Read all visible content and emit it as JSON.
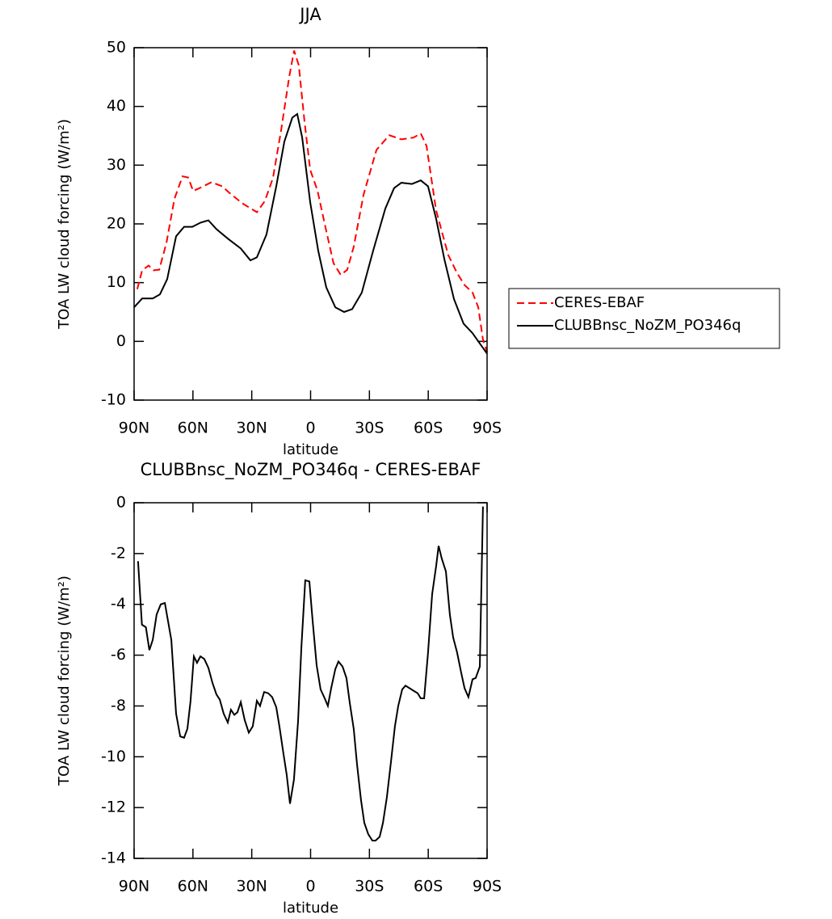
{
  "chart_data": [
    {
      "type": "line",
      "title": "JJA",
      "xlabel": "latitude",
      "ylabel": "TOA LW cloud forcing (W/m²)",
      "xlim": [
        90,
        -90
      ],
      "ylim": [
        -10,
        50
      ],
      "xticks": [
        {
          "value": 90,
          "label": "90N"
        },
        {
          "value": 60,
          "label": "60N"
        },
        {
          "value": 30,
          "label": "30N"
        },
        0,
        {
          "value": -30,
          "label": "30S"
        },
        {
          "value": -60,
          "label": "60S"
        },
        {
          "value": -90,
          "label": "90S"
        }
      ],
      "yticks": [
        -10,
        0,
        10,
        20,
        30,
        40,
        50
      ],
      "legend": "right",
      "series": [
        {
          "name": "CERES-EBAF",
          "color": "#ff0000",
          "dashed": true,
          "x": [
            88.4,
            85.9,
            82.6,
            80.1,
            77.2,
            73.5,
            69.4,
            65.3,
            62.4,
            59.9,
            56.6,
            50.5,
            45.1,
            41.8,
            34.8,
            27.4,
            23.3,
            19.2,
            15.0,
            10.9,
            8.4,
            6.0,
            3.1,
            0.2,
            -3.5,
            -8.0,
            -11.7,
            -15.4,
            -18.7,
            -22.0,
            -27.0,
            -33.6,
            -40.1,
            -46.3,
            -52.5,
            -56.2,
            -59.1,
            -64.0,
            -70.2,
            -74.7,
            -78.5,
            -82.6,
            -85.5,
            -87.9,
            -90.0
          ],
          "values": [
            8.9,
            12.1,
            12.9,
            12.1,
            12.2,
            16.8,
            24.3,
            28.1,
            27.9,
            25.6,
            26.1,
            27.1,
            26.4,
            25.4,
            23.5,
            22.0,
            23.9,
            27.8,
            36.0,
            45.0,
            49.5,
            47.0,
            37.4,
            29.2,
            25.7,
            18.8,
            13.3,
            11.3,
            12.2,
            16.1,
            25.0,
            32.6,
            35.1,
            34.4,
            34.7,
            35.4,
            33.3,
            22.3,
            14.7,
            11.6,
            9.6,
            8.3,
            5.8,
            0.3,
            -1.8
          ]
        },
        {
          "name": "CLUBBnsc_NoZM_PO346q",
          "color": "#000000",
          "dashed": false,
          "x": [
            90.0,
            85.9,
            80.5,
            76.8,
            73.1,
            68.6,
            64.5,
            60.3,
            56.2,
            52.1,
            48.0,
            42.2,
            35.6,
            30.7,
            27.4,
            22.5,
            17.5,
            13.4,
            9.3,
            6.8,
            4.3,
            0.2,
            -3.9,
            -8.0,
            -12.6,
            -17.1,
            -21.2,
            -26.1,
            -31.9,
            -38.1,
            -42.6,
            -46.3,
            -51.7,
            -56.2,
            -59.9,
            -64.0,
            -68.2,
            -73.1,
            -78.0,
            -82.6,
            -85.5,
            -90.0
          ],
          "values": [
            5.8,
            7.3,
            7.3,
            8.0,
            10.6,
            17.9,
            19.5,
            19.5,
            20.2,
            20.6,
            19.1,
            17.5,
            15.8,
            13.8,
            14.3,
            18.2,
            26.4,
            34.0,
            38.1,
            38.7,
            34.7,
            23.7,
            15.4,
            9.2,
            5.8,
            5.0,
            5.5,
            8.3,
            15.4,
            22.6,
            26.1,
            27.0,
            26.8,
            27.4,
            26.4,
            20.9,
            14.0,
            7.2,
            3.0,
            1.4,
            0.0,
            -2.1
          ]
        }
      ]
    },
    {
      "type": "line",
      "title": "CLUBBnsc_NoZM_PO346q - CERES-EBAF",
      "xlabel": "latitude",
      "ylabel": "TOA LW cloud forcing (W/m²)",
      "xlim": [
        90,
        -90
      ],
      "ylim": [
        -14,
        0
      ],
      "xticks": [
        {
          "value": 90,
          "label": "90N"
        },
        {
          "value": 60,
          "label": "60N"
        },
        {
          "value": 30,
          "label": "30N"
        },
        0,
        {
          "value": -30,
          "label": "30S"
        },
        {
          "value": -60,
          "label": "60S"
        },
        {
          "value": -90,
          "label": "90S"
        }
      ],
      "yticks": [
        -14,
        -12,
        -10,
        -8,
        -6,
        -4,
        -2,
        0
      ],
      "series": [
        {
          "color": "#000000",
          "dashed": false,
          "x": [
            88,
            86,
            84,
            82.2,
            80.5,
            78.5,
            76.4,
            74.3,
            71,
            68.6,
            66.5,
            64.5,
            62.8,
            61.2,
            59.5,
            57.9,
            56.2,
            54.2,
            52.1,
            50.0,
            48.0,
            46.3,
            44.3,
            42.2,
            40.6,
            38.9,
            37.3,
            35.6,
            33.6,
            31.5,
            29.5,
            27.4,
            25.8,
            23.7,
            21.6,
            19.6,
            17.5,
            15.9,
            13.8,
            12.2,
            10.5,
            8.5,
            6.4,
            4.7,
            2.7,
            0.6,
            -1.0,
            -3.1,
            -5.1,
            -7.2,
            -8.8,
            -10.5,
            -12.6,
            -14.2,
            -16.3,
            -18.3,
            -20.0,
            -22.0,
            -23.7,
            -25.7,
            -27.4,
            -29.4,
            -31.5,
            -33.1,
            -35.2,
            -36.9,
            -38.9,
            -41.0,
            -43.0,
            -44.7,
            -46.7,
            -48.4,
            -50.4,
            -52.5,
            -54.6,
            -56.2,
            -57.9,
            -59.9,
            -62.0,
            -64.0,
            -65.3,
            -66.9,
            -69.0,
            -71.0,
            -72.7,
            -74.7,
            -76.8,
            -78.5,
            -80.5,
            -82.6,
            -84.2,
            -86.3,
            -87.9
          ],
          "values": [
            -2.3,
            -4.8,
            -4.9,
            -5.8,
            -5.4,
            -4.4,
            -4.0,
            -3.95,
            -5.4,
            -8.3,
            -9.2,
            -9.25,
            -8.9,
            -7.8,
            -6.05,
            -6.3,
            -6.05,
            -6.15,
            -6.5,
            -7.1,
            -7.55,
            -7.75,
            -8.3,
            -8.65,
            -8.15,
            -8.35,
            -8.25,
            -7.85,
            -8.55,
            -9.05,
            -8.8,
            -7.8,
            -8.0,
            -7.45,
            -7.5,
            -7.65,
            -8.05,
            -8.8,
            -9.9,
            -10.7,
            -11.85,
            -10.9,
            -8.6,
            -5.7,
            -3.05,
            -3.1,
            -4.6,
            -6.4,
            -7.35,
            -7.7,
            -8.0,
            -7.3,
            -6.55,
            -6.25,
            -6.45,
            -6.9,
            -7.9,
            -8.9,
            -10.3,
            -11.7,
            -12.6,
            -13.05,
            -13.3,
            -13.3,
            -13.15,
            -12.6,
            -11.6,
            -10.2,
            -8.8,
            -8.0,
            -7.35,
            -7.2,
            -7.3,
            -7.4,
            -7.5,
            -7.7,
            -7.7,
            -5.9,
            -3.6,
            -2.5,
            -1.7,
            -2.2,
            -2.7,
            -4.4,
            -5.3,
            -5.9,
            -6.7,
            -7.3,
            -7.65,
            -6.95,
            -6.9,
            -6.45,
            -0.15
          ]
        }
      ]
    }
  ]
}
